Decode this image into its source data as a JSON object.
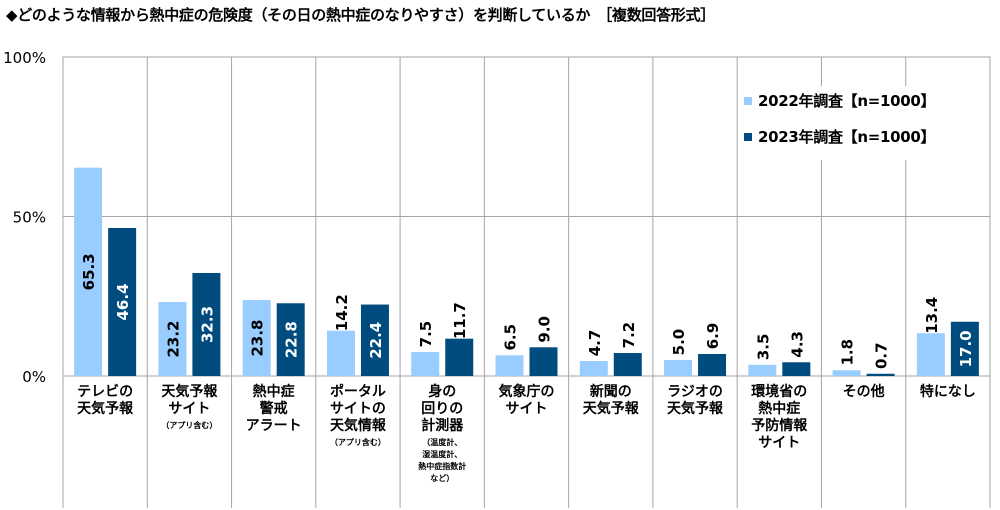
{
  "title": "◆どのような情報から熱中症の危険度（その日の熱中症のなりやすさ）を判断しているか　［複数回答形式］",
  "colors": {
    "series_2022": "#99ccff",
    "series_2023": "#004c7f",
    "grid": "#a6a6a6"
  },
  "legend": [
    "2022年調査【n=1000】",
    "2023年調査【n=1000】"
  ],
  "chart_data": {
    "type": "bar",
    "title": "◆どのような情報から熱中症の危険度（その日の熱中症のなりやすさ）を判断しているか　［複数回答形式］",
    "ylim": [
      0,
      100
    ],
    "yticks": [
      "0%",
      "50%",
      "100%"
    ],
    "categories": [
      {
        "label": "テレビの\n天気予報",
        "note": ""
      },
      {
        "label": "天気予報\nサイト",
        "note": "（アプリ含む）"
      },
      {
        "label": "熱中症\n警戒\nアラート",
        "note": ""
      },
      {
        "label": "ポータル\nサイトの\n天気情報",
        "note": "（アプリ含む）"
      },
      {
        "label": "身の\n回りの\n計測器",
        "note": "（温度計、\n湿温度計、\n熱中症指数計\nなど）"
      },
      {
        "label": "気象庁の\nサイト",
        "note": ""
      },
      {
        "label": "新聞の\n天気予報",
        "note": ""
      },
      {
        "label": "ラジオの\n天気予報",
        "note": ""
      },
      {
        "label": "環境省の\n熱中症\n予防情報\nサイト",
        "note": ""
      },
      {
        "label": "その他",
        "note": ""
      },
      {
        "label": "特になし",
        "note": ""
      }
    ],
    "series": [
      {
        "name": "2022年調査【n=1000】",
        "values": [
          65.3,
          23.2,
          23.8,
          14.2,
          7.5,
          6.5,
          4.7,
          5.0,
          3.5,
          1.8,
          13.4
        ],
        "labels": [
          "65.3",
          "23.2",
          "23.8",
          "14.2",
          "7.5",
          "6.5",
          "4.7",
          "5.0",
          "3.5",
          "1.8",
          "13.4"
        ]
      },
      {
        "name": "2023年調査【n=1000】",
        "values": [
          46.4,
          32.3,
          22.8,
          22.4,
          11.7,
          9.0,
          7.2,
          6.9,
          4.3,
          0.7,
          17.0
        ],
        "labels": [
          "46.4",
          "32.3",
          "22.8",
          "22.4",
          "11.7",
          "9.0",
          "7.2",
          "6.9",
          "4.3",
          "0.7",
          "17.0"
        ]
      }
    ],
    "grid": true,
    "legend_position": "top-right"
  }
}
